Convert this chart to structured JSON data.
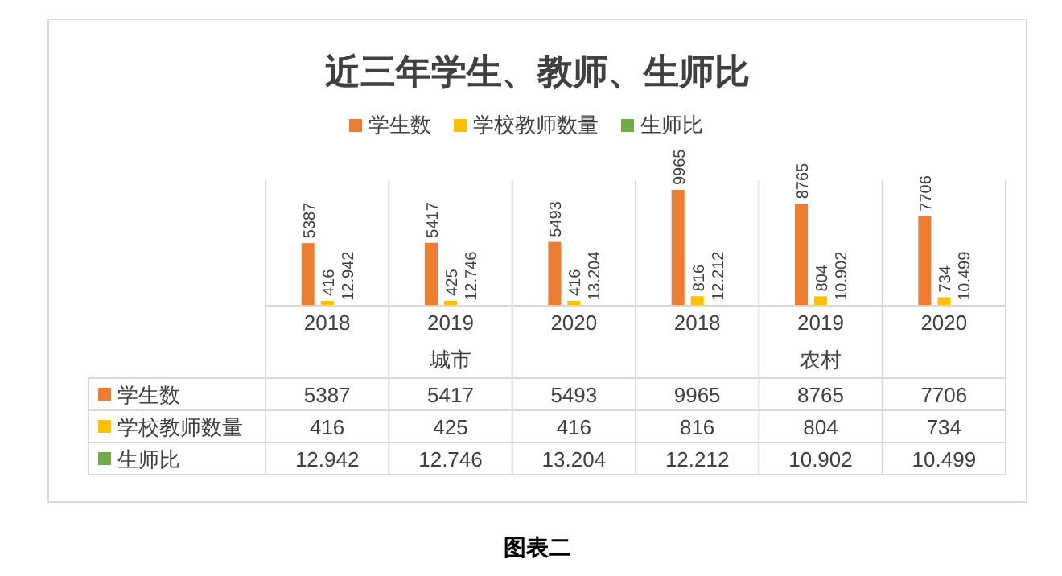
{
  "chart_data": [
    {
      "type": "bar",
      "title": "近三年学生、教师、生师比",
      "categories": [
        "2018",
        "2019",
        "2020",
        "2018",
        "2019",
        "2020"
      ],
      "series": [
        {
          "name": "学生数",
          "color": "#ed7d31",
          "values": [
            5387,
            5417,
            5493,
            9965,
            8765,
            7706
          ],
          "value_labels": [
            "5387",
            "5417",
            "5493",
            "9965",
            "8765",
            "7706"
          ]
        },
        {
          "name": "学校教师数量",
          "color": "#ffc000",
          "values": [
            416,
            425,
            416,
            816,
            804,
            734
          ],
          "value_labels": [
            "416",
            "425",
            "416",
            "816",
            "804",
            "734"
          ]
        },
        {
          "name": "生师比",
          "color": "#70ad47",
          "values": [
            12.942,
            12.746,
            13.204,
            12.212,
            10.902,
            10.499
          ],
          "value_labels": [
            "12.942",
            "12.746",
            "13.204",
            "12.212",
            "10.902",
            "10.499"
          ]
        }
      ],
      "legend": "top",
      "annotations": [
        "城市",
        "农村",
        "图表二"
      ]
    },
    {
      "type": "other",
      "y_categories": [
        "学生数",
        "学校教师数量",
        "生师比"
      ],
      "colors": [
        "#ed7d31",
        "#ffc000",
        "#70ad47"
      ],
      "cell_labels": [
        [
          "5387",
          "5417",
          "5493",
          "9965",
          "8765",
          "7706"
        ],
        [
          "416",
          "425",
          "416",
          "816",
          "804",
          "734"
        ],
        [
          "12.942",
          "12.746",
          "13.204",
          "12.212",
          "10.902",
          "10.499"
        ]
      ]
    }
  ]
}
